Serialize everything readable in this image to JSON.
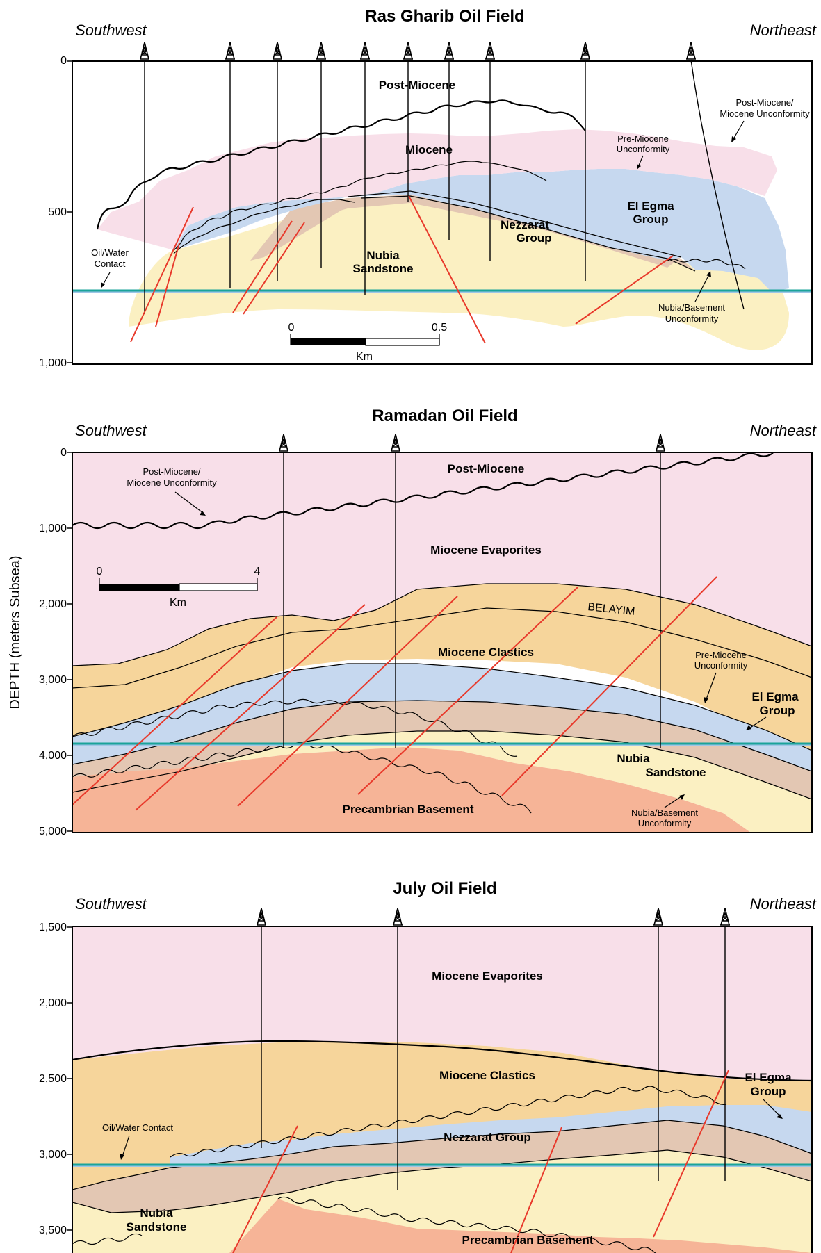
{
  "axis_title": "DEPTH (meters Subsea)",
  "colors": {
    "post_miocene": "#f8dfe9",
    "miocene_clastics": "#f6d59b",
    "el_egma": "#c6d8ef",
    "nezzarat": "#e3c7b3",
    "nubia": "#fbf0c2",
    "basement": "#f6b497",
    "fault": "#e8392b",
    "oil_water_contact": "#1aa39a"
  },
  "panels": [
    {
      "title": "Ras Gharib Oil Field",
      "left_dir": "Southwest",
      "right_dir": "Northeast",
      "depth_ticks": [
        "0",
        "500",
        "1,000"
      ],
      "units": {
        "post_miocene": "Post-Miocene",
        "miocene": "Miocene",
        "el_egma_1": "El Egma",
        "el_egma_2": "Group",
        "nezzarat_1": "Nezzarat",
        "nezzarat_2": "Group",
        "nubia_1": "Nubia",
        "nubia_2": "Sandstone"
      },
      "notes": {
        "owc_1": "Oil/Water",
        "owc_2": "Contact",
        "pm_unc_1": "Post-Miocene/",
        "pm_unc_2": "Miocene Unconformity",
        "pre_unc_1": "Pre-Miocene",
        "pre_unc_2": "Unconformity",
        "nb_unc_1": "Nubia/Basement",
        "nb_unc_2": "Unconformity"
      },
      "scale": {
        "start": "0",
        "end": "0.5",
        "unit": "Km"
      },
      "well_count": 10
    },
    {
      "title": "Ramadan Oil Field",
      "left_dir": "Southwest",
      "right_dir": "Northeast",
      "depth_ticks": [
        "0",
        "1,000",
        "2,000",
        "3,000",
        "4,000",
        "5,000"
      ],
      "units": {
        "post_miocene": "Post-Miocene",
        "evaporites": "Miocene Evaporites",
        "belayim": "BELAYIM",
        "clastics": "Miocene Clastics",
        "el_egma_1": "El Egma",
        "el_egma_2": "Group",
        "nubia_1": "Nubia",
        "nubia_2": "Sandstone",
        "basement": "Precambrian Basement"
      },
      "notes": {
        "pm_unc_1": "Post-Miocene/",
        "pm_unc_2": "Miocene Unconformity",
        "pre_unc_1": "Pre-Miocene",
        "pre_unc_2": "Unconformity",
        "nb_unc_1": "Nubia/Basement",
        "nb_unc_2": "Unconformity"
      },
      "scale": {
        "start": "0",
        "end": "4",
        "unit": "Km"
      },
      "well_count": 3
    },
    {
      "title": "July Oil Field",
      "left_dir": "Southwest",
      "right_dir": "Northeast",
      "depth_ticks": [
        "1,500",
        "2,000",
        "2,500",
        "3,000",
        "3,500"
      ],
      "units": {
        "evaporites": "Miocene Evaporites",
        "clastics": "Miocene Clastics",
        "el_egma_1": "El Egma",
        "el_egma_2": "Group",
        "nezzarat": "Nezzarat Group",
        "nubia_1": "Nubia",
        "nubia_2": "Sandstone",
        "basement": "Precambrian Basement"
      },
      "notes": {
        "owc": "Oil/Water Contact"
      },
      "well_count": 4
    }
  ]
}
